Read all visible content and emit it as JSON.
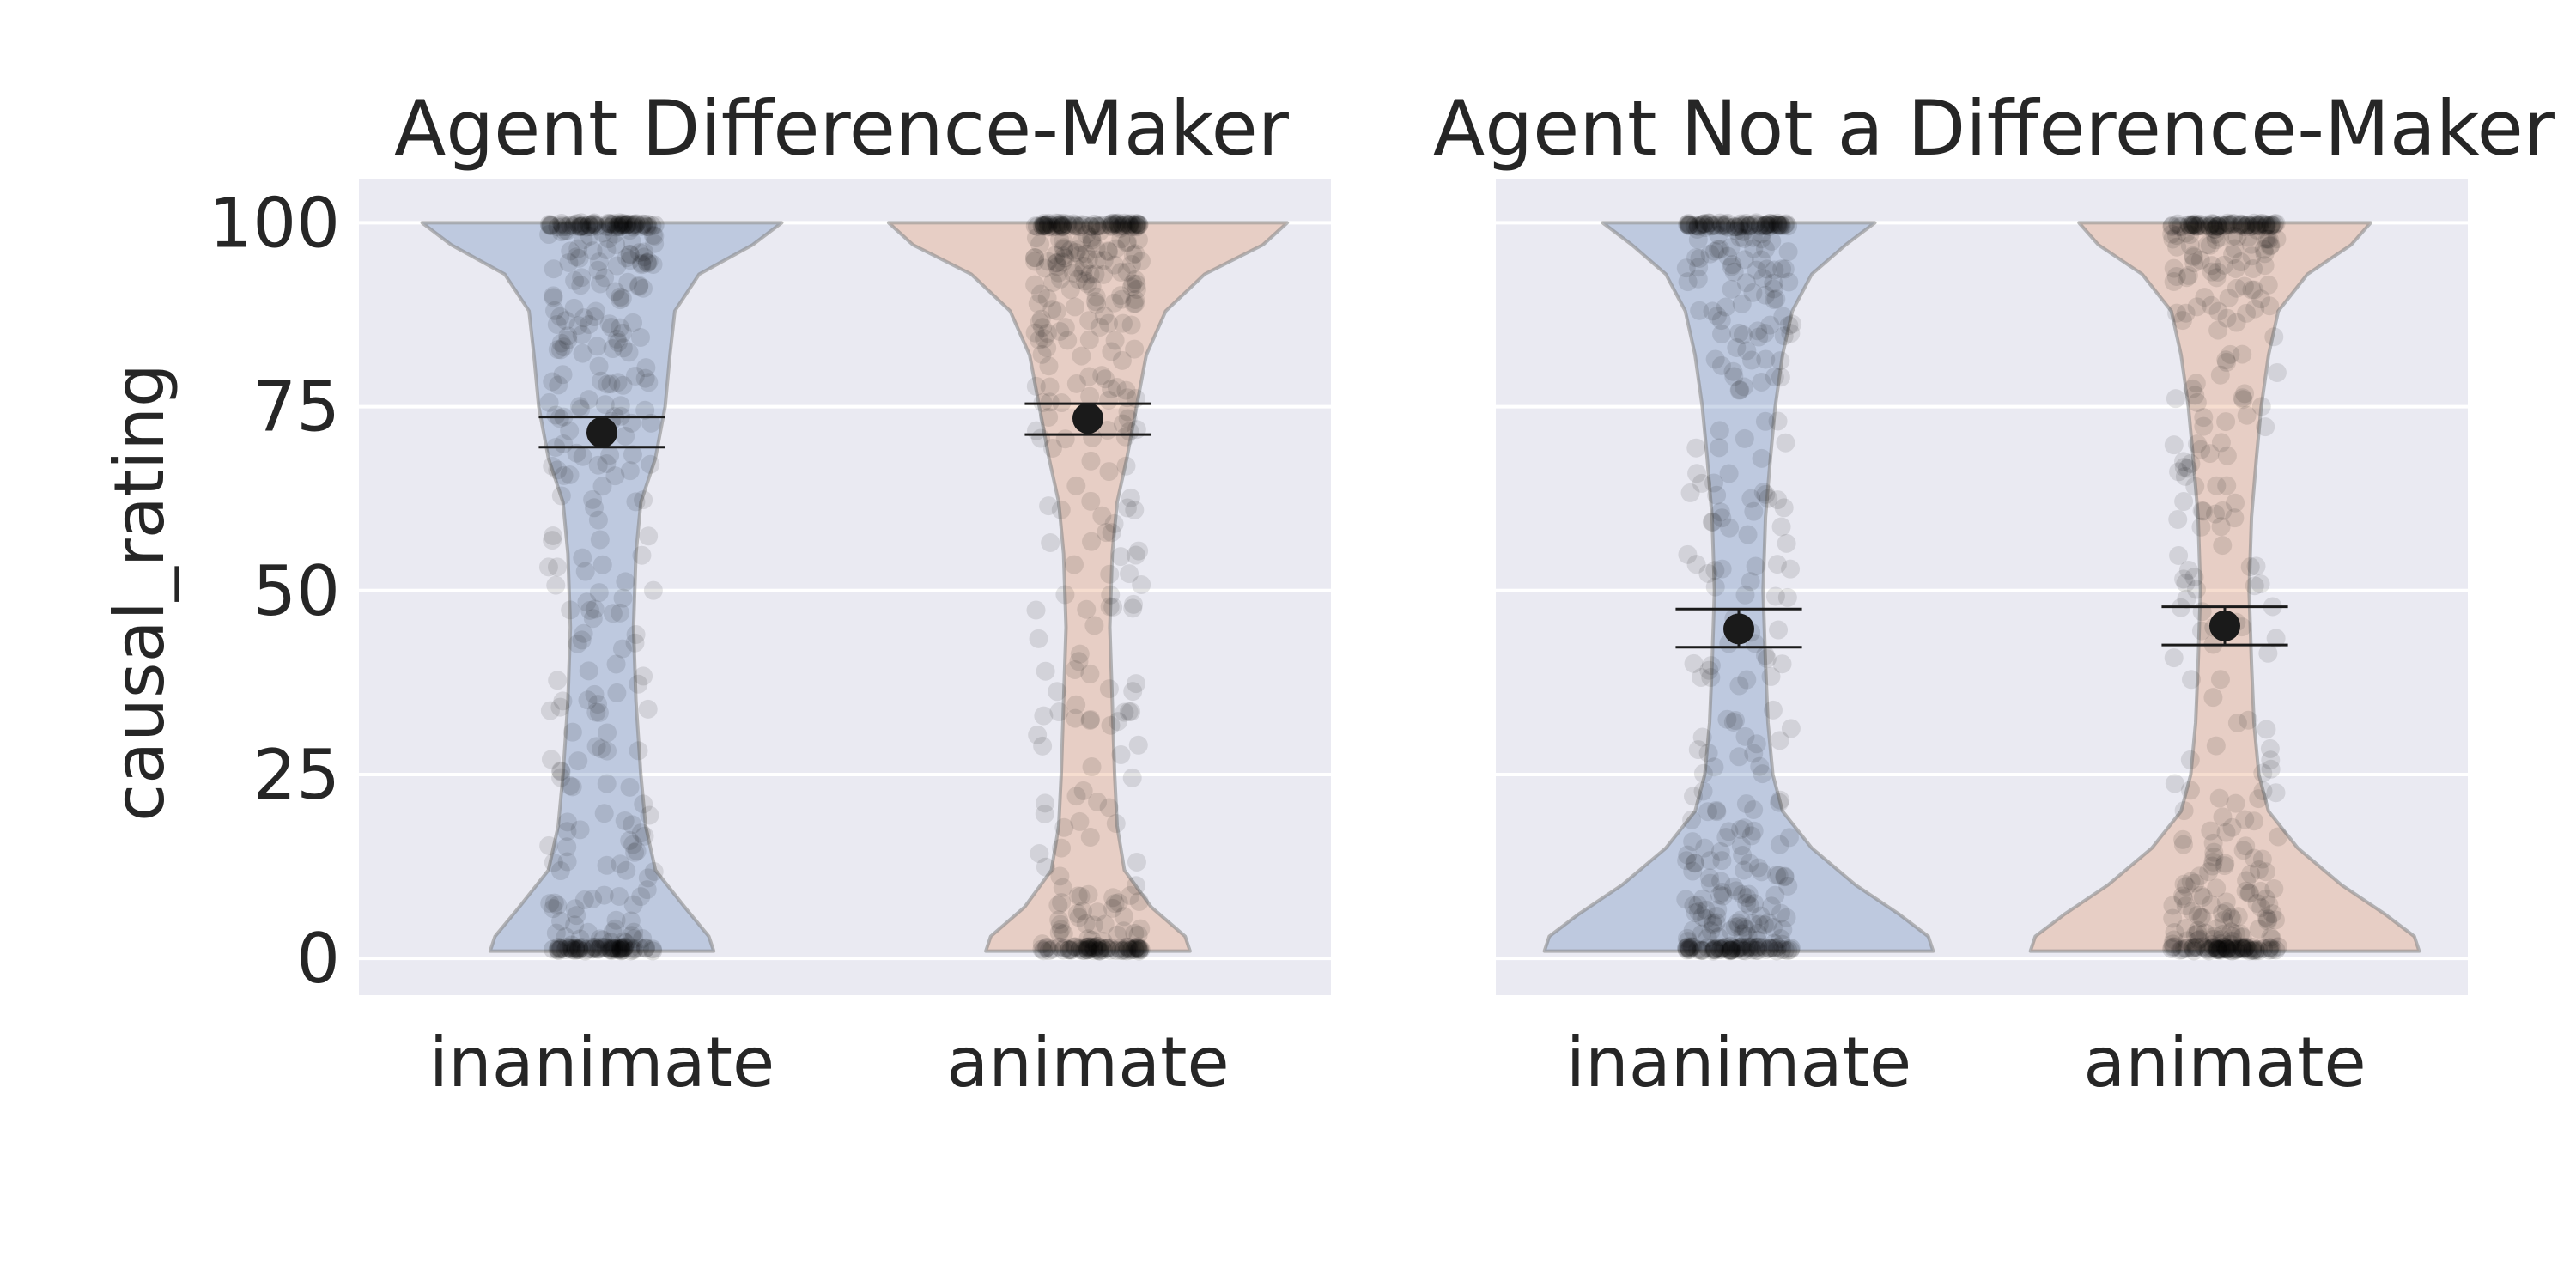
{
  "chart_data": [
    {
      "type": "violin",
      "title": "Agent Difference-Maker",
      "xlabel": "",
      "ylabel": "causal_rating",
      "ylim": [
        -5,
        106
      ],
      "yticks": [
        0,
        25,
        50,
        75,
        100
      ],
      "grid": true,
      "categories": [
        "inanimate",
        "animate"
      ],
      "category_colors": [
        "#4c72b0",
        "#dd8452"
      ],
      "mean_ci": [
        {
          "category": "inanimate",
          "mean": 71.5,
          "ci_low": 69.5,
          "ci_high": 73.6
        },
        {
          "category": "animate",
          "mean": 73.4,
          "ci_low": 71.2,
          "ci_high": 75.4
        }
      ],
      "density_profiles": [
        {
          "category": "inanimate",
          "y": [
            1,
            3,
            7,
            12,
            18,
            25,
            35,
            45,
            55,
            62,
            68,
            75,
            82,
            88,
            93,
            97,
            100
          ],
          "half_width": [
            0.23,
            0.22,
            0.17,
            0.11,
            0.09,
            0.08,
            0.07,
            0.065,
            0.07,
            0.08,
            0.11,
            0.13,
            0.14,
            0.15,
            0.2,
            0.31,
            0.37
          ]
        },
        {
          "category": "animate",
          "y": [
            1,
            3,
            7,
            12,
            18,
            25,
            35,
            45,
            55,
            62,
            68,
            75,
            82,
            88,
            93,
            97,
            100
          ],
          "half_width": [
            0.21,
            0.2,
            0.13,
            0.075,
            0.06,
            0.055,
            0.05,
            0.045,
            0.05,
            0.06,
            0.08,
            0.1,
            0.12,
            0.16,
            0.24,
            0.36,
            0.41
          ]
        }
      ]
    },
    {
      "type": "violin",
      "title": "Agent Not a Difference-Maker",
      "xlabel": "",
      "ylabel": "",
      "ylim": [
        -5,
        106
      ],
      "yticks": [
        0,
        25,
        50,
        75,
        100
      ],
      "grid": true,
      "categories": [
        "inanimate",
        "animate"
      ],
      "category_colors": [
        "#4c72b0",
        "#dd8452"
      ],
      "mean_ci": [
        {
          "category": "inanimate",
          "mean": 44.8,
          "ci_low": 42.3,
          "ci_high": 47.5
        },
        {
          "category": "animate",
          "mean": 45.2,
          "ci_low": 42.6,
          "ci_high": 47.8
        }
      ],
      "density_profiles": [
        {
          "category": "inanimate",
          "y": [
            1,
            3,
            6,
            10,
            15,
            20,
            25,
            32,
            40,
            50,
            60,
            68,
            75,
            82,
            88,
            93,
            97,
            100
          ],
          "half_width": [
            0.4,
            0.39,
            0.33,
            0.24,
            0.15,
            0.09,
            0.07,
            0.06,
            0.055,
            0.05,
            0.055,
            0.065,
            0.075,
            0.09,
            0.11,
            0.15,
            0.22,
            0.28
          ]
        },
        {
          "category": "animate",
          "y": [
            1,
            3,
            6,
            10,
            15,
            20,
            25,
            32,
            40,
            50,
            60,
            68,
            75,
            82,
            88,
            93,
            97,
            100
          ],
          "half_width": [
            0.4,
            0.39,
            0.33,
            0.24,
            0.15,
            0.09,
            0.07,
            0.06,
            0.055,
            0.05,
            0.055,
            0.065,
            0.075,
            0.09,
            0.11,
            0.17,
            0.26,
            0.3
          ]
        }
      ]
    }
  ]
}
